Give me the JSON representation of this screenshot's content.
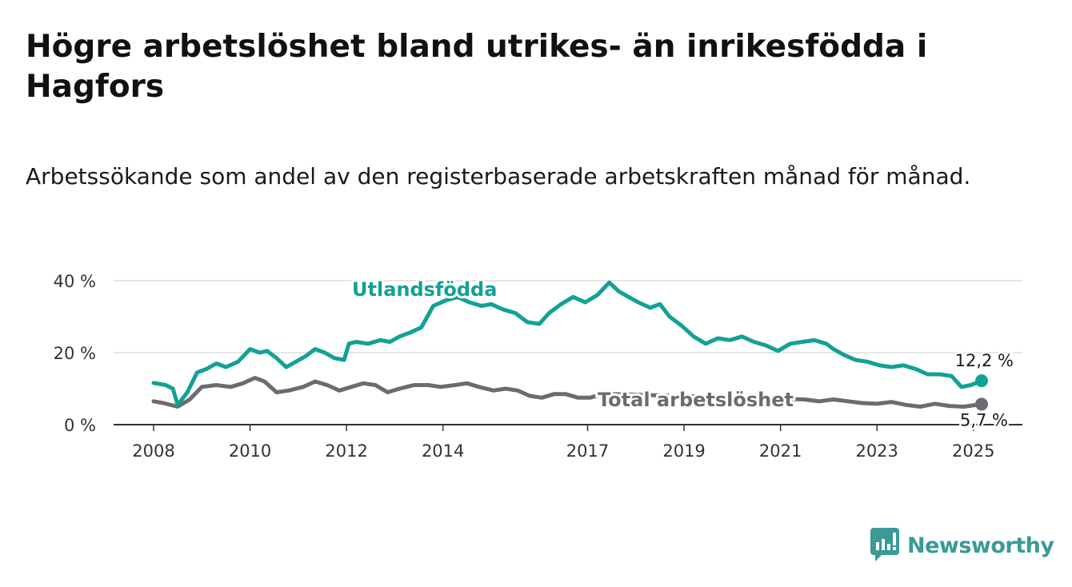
{
  "title": "Högre arbetslöshet bland utrikes- än inrikesfödda i Hagfors",
  "subtitle": "Arbetssökande som andel av den registerbaserade arbetskraften månad för månad.",
  "brand": {
    "name": "Newsworthy",
    "icon": "newsworthy-logo-icon",
    "color": "#3a9a96"
  },
  "colors": {
    "foreign": "#12a195",
    "total": "#6d6a72",
    "grid": "#dddddd",
    "axis": "#333333"
  },
  "chart_data": {
    "type": "line",
    "title": "Högre arbetslöshet bland utrikes- än inrikesfödda i Hagfors",
    "subtitle": "Arbetssökande som andel av den registerbaserade arbetskraften månad för månad.",
    "xlabel": "",
    "ylabel": "",
    "xlim": [
      2008.0,
      2025.17
    ],
    "ylim": [
      0,
      40
    ],
    "grid": true,
    "legend": "direct labels",
    "y_ticks": [
      {
        "value": 0,
        "label": "0 %"
      },
      {
        "value": 20,
        "label": "20 %"
      },
      {
        "value": 40,
        "label": "40 %"
      }
    ],
    "x_ticks": [
      {
        "value": 2008,
        "label": "2008"
      },
      {
        "value": 2010,
        "label": "2010"
      },
      {
        "value": 2012,
        "label": "2012"
      },
      {
        "value": 2014,
        "label": "2014"
      },
      {
        "value": 2017,
        "label": "2017"
      },
      {
        "value": 2019,
        "label": "2019"
      },
      {
        "value": 2021,
        "label": "2021"
      },
      {
        "value": 2023,
        "label": "2023"
      },
      {
        "value": 2025,
        "label": "2025"
      }
    ],
    "series": [
      {
        "name": "Utlandsfödda",
        "color": "#12a195",
        "end_label": "12,2 %",
        "points": [
          [
            2008.0,
            11.6
          ],
          [
            2008.25,
            11.0
          ],
          [
            2008.4,
            10.0
          ],
          [
            2008.5,
            5.5
          ],
          [
            2008.7,
            9.0
          ],
          [
            2008.9,
            14.5
          ],
          [
            2009.1,
            15.5
          ],
          [
            2009.3,
            17.0
          ],
          [
            2009.5,
            16.0
          ],
          [
            2009.75,
            17.5
          ],
          [
            2010.0,
            21.0
          ],
          [
            2010.2,
            20.0
          ],
          [
            2010.35,
            20.5
          ],
          [
            2010.55,
            18.5
          ],
          [
            2010.75,
            16.0
          ],
          [
            2010.95,
            17.5
          ],
          [
            2011.15,
            19.0
          ],
          [
            2011.35,
            21.0
          ],
          [
            2011.55,
            20.0
          ],
          [
            2011.75,
            18.5
          ],
          [
            2011.95,
            18.0
          ],
          [
            2012.05,
            22.5
          ],
          [
            2012.2,
            23.0
          ],
          [
            2012.45,
            22.5
          ],
          [
            2012.7,
            23.5
          ],
          [
            2012.9,
            23.0
          ],
          [
            2013.1,
            24.5
          ],
          [
            2013.3,
            25.5
          ],
          [
            2013.55,
            27.0
          ],
          [
            2013.8,
            33.0
          ],
          [
            2014.05,
            34.5
          ],
          [
            2014.3,
            35.5
          ],
          [
            2014.55,
            34.0
          ],
          [
            2014.8,
            33.0
          ],
          [
            2015.0,
            33.5
          ],
          [
            2015.25,
            32.0
          ],
          [
            2015.5,
            31.0
          ],
          [
            2015.75,
            28.5
          ],
          [
            2016.0,
            28.0
          ],
          [
            2016.2,
            31.0
          ],
          [
            2016.45,
            33.5
          ],
          [
            2016.7,
            35.5
          ],
          [
            2016.95,
            34.0
          ],
          [
            2017.2,
            36.0
          ],
          [
            2017.45,
            39.5
          ],
          [
            2017.65,
            37.0
          ],
          [
            2017.85,
            35.5
          ],
          [
            2018.05,
            34.0
          ],
          [
            2018.3,
            32.5
          ],
          [
            2018.5,
            33.5
          ],
          [
            2018.7,
            30.0
          ],
          [
            2018.95,
            27.5
          ],
          [
            2019.2,
            24.5
          ],
          [
            2019.45,
            22.5
          ],
          [
            2019.7,
            24.0
          ],
          [
            2019.95,
            23.5
          ],
          [
            2020.2,
            24.5
          ],
          [
            2020.45,
            23.0
          ],
          [
            2020.7,
            22.0
          ],
          [
            2020.95,
            20.5
          ],
          [
            2021.2,
            22.5
          ],
          [
            2021.45,
            23.0
          ],
          [
            2021.7,
            23.5
          ],
          [
            2021.95,
            22.5
          ],
          [
            2022.1,
            21.0
          ],
          [
            2022.3,
            19.5
          ],
          [
            2022.55,
            18.0
          ],
          [
            2022.8,
            17.5
          ],
          [
            2023.05,
            16.5
          ],
          [
            2023.3,
            16.0
          ],
          [
            2023.55,
            16.5
          ],
          [
            2023.8,
            15.5
          ],
          [
            2024.05,
            14.0
          ],
          [
            2024.3,
            14.0
          ],
          [
            2024.55,
            13.5
          ],
          [
            2024.75,
            10.5
          ],
          [
            2024.95,
            11.0
          ],
          [
            2025.17,
            12.2
          ]
        ]
      },
      {
        "name": "Total arbetslöshet",
        "color": "#6d6a72",
        "end_label": "5,7 %",
        "points": [
          [
            2008.0,
            6.5
          ],
          [
            2008.2,
            6.0
          ],
          [
            2008.5,
            5.0
          ],
          [
            2008.75,
            7.0
          ],
          [
            2009.0,
            10.5
          ],
          [
            2009.3,
            11.0
          ],
          [
            2009.6,
            10.5
          ],
          [
            2009.85,
            11.5
          ],
          [
            2010.1,
            13.0
          ],
          [
            2010.3,
            12.0
          ],
          [
            2010.55,
            9.0
          ],
          [
            2010.8,
            9.5
          ],
          [
            2011.1,
            10.5
          ],
          [
            2011.35,
            12.0
          ],
          [
            2011.6,
            11.0
          ],
          [
            2011.85,
            9.5
          ],
          [
            2012.1,
            10.5
          ],
          [
            2012.35,
            11.5
          ],
          [
            2012.6,
            11.0
          ],
          [
            2012.85,
            9.0
          ],
          [
            2013.1,
            10.0
          ],
          [
            2013.4,
            11.0
          ],
          [
            2013.7,
            11.0
          ],
          [
            2013.95,
            10.5
          ],
          [
            2014.25,
            11.0
          ],
          [
            2014.5,
            11.5
          ],
          [
            2014.75,
            10.5
          ],
          [
            2015.05,
            9.5
          ],
          [
            2015.3,
            10.0
          ],
          [
            2015.55,
            9.5
          ],
          [
            2015.8,
            8.0
          ],
          [
            2016.05,
            7.5
          ],
          [
            2016.3,
            8.5
          ],
          [
            2016.55,
            8.5
          ],
          [
            2016.8,
            7.5
          ],
          [
            2017.05,
            7.5
          ],
          [
            2017.3,
            8.5
          ],
          [
            2017.5,
            8.5
          ],
          [
            2021.5,
            7.0
          ],
          [
            2021.8,
            6.5
          ],
          [
            2022.1,
            7.0
          ],
          [
            2022.4,
            6.5
          ],
          [
            2022.7,
            6.0
          ],
          [
            2023.0,
            5.8
          ],
          [
            2023.3,
            6.3
          ],
          [
            2023.6,
            5.5
          ],
          [
            2023.9,
            5.0
          ],
          [
            2024.2,
            5.8
          ],
          [
            2024.5,
            5.2
          ],
          [
            2024.8,
            5.0
          ],
          [
            2025.17,
            5.7
          ]
        ]
      }
    ]
  }
}
